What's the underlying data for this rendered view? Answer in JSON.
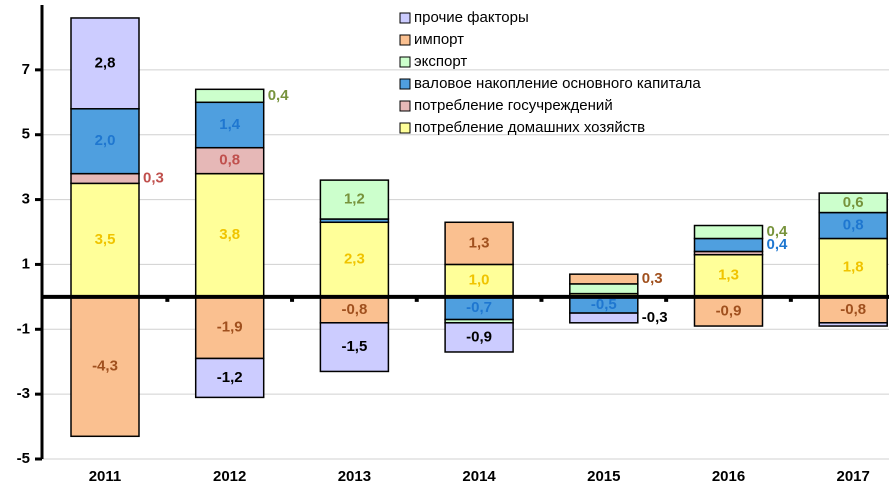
{
  "chart_data": {
    "type": "bar",
    "stacked": true,
    "categories": [
      "2011",
      "2012",
      "2013",
      "2014",
      "2015",
      "2016",
      "2017"
    ],
    "ylim": [
      -5,
      9
    ],
    "yticks": [
      -5,
      -3,
      -1,
      1,
      3,
      5,
      7
    ],
    "grid": true,
    "series": [
      {
        "name": "потребление домашних хозяйств",
        "color": "#ffff99",
        "label_color": "#f0c400",
        "values": [
          3.5,
          3.8,
          2.3,
          1.0,
          0.1,
          1.3,
          1.8
        ],
        "value_labels": [
          "3,5",
          "3,8",
          "2,3",
          "1,0",
          null,
          "1,3",
          "1,8"
        ]
      },
      {
        "name": "потребление госучреждений",
        "color": "#e6b8b7",
        "label_color": "#c0504d",
        "values": [
          0.3,
          0.8,
          null,
          null,
          null,
          0.1,
          null
        ],
        "value_labels": [
          "0,3",
          "0,8",
          null,
          null,
          null,
          null,
          null
        ]
      },
      {
        "name": "валовое накопление основного капитала",
        "color": "#4f9fdf",
        "label_color": "#1f77d0",
        "values": [
          2.0,
          1.4,
          0.1,
          -0.7,
          -0.5,
          0.4,
          0.8
        ],
        "value_labels": [
          "2,0",
          "1,4",
          null,
          "-0,7",
          "-0,5",
          "0,4",
          "0,8"
        ]
      },
      {
        "name": "экспорт",
        "color": "#ccffcc",
        "label_color": "#77933c",
        "values": [
          null,
          0.4,
          1.2,
          -0.1,
          0.3,
          0.4,
          0.6
        ],
        "value_labels": [
          null,
          "0,4",
          "1,2",
          null,
          null,
          "0,4",
          "0,6"
        ]
      },
      {
        "name": "импорт",
        "color": "#fac090",
        "label_color": "#a0501e",
        "values": [
          -4.3,
          -1.9,
          -0.8,
          1.3,
          0.3,
          -0.9,
          -0.8
        ],
        "value_labels": [
          "-4,3",
          "-1,9",
          "-0,8",
          "1,3",
          "0,3",
          "-0,9",
          "-0,8"
        ]
      },
      {
        "name": "прочие факторы",
        "color": "#ccccff",
        "label_color": "#000000",
        "values": [
          2.8,
          -1.2,
          -1.5,
          -0.9,
          -0.3,
          null,
          -0.1
        ],
        "value_labels": [
          "2,8",
          "-1,2",
          "-1,5",
          "-0,9",
          "-0,3",
          null,
          null
        ]
      }
    ]
  }
}
